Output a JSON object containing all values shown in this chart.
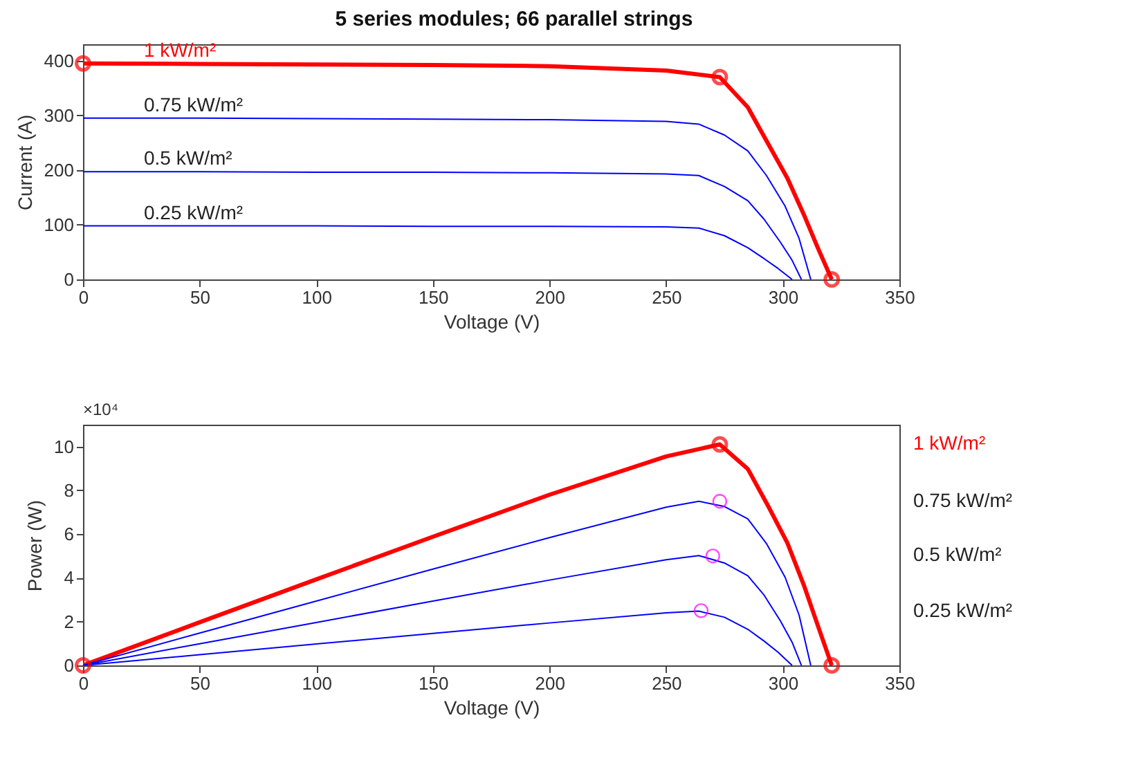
{
  "chart_data": [
    {
      "type": "line",
      "title": "5 series modules; 66 parallel strings",
      "xlabel": "Voltage (V)",
      "ylabel": "Current (A)",
      "xlim": [
        0,
        350
      ],
      "xticks": [
        0,
        50,
        100,
        150,
        200,
        250,
        300,
        350
      ],
      "ylim": [
        0,
        430
      ],
      "yticks": [
        0,
        100,
        200,
        300,
        400
      ],
      "grid": false,
      "marker": "none",
      "line_style": "solid",
      "series": [
        {
          "name": "1 kW/m²",
          "color": "#ff0000",
          "x": [
            0,
            50,
            100,
            150,
            200,
            250,
            273,
            285,
            294,
            302,
            309,
            315,
            321
          ],
          "values": [
            395,
            394,
            393,
            392,
            390,
            382,
            370,
            315,
            246,
            185,
            119,
            58,
            0
          ]
        },
        {
          "name": "0.75 kW/m²",
          "color": "#0000ff",
          "x": [
            0,
            50,
            100,
            150,
            200,
            250,
            264,
            275,
            285,
            293,
            301,
            307,
            312
          ],
          "values": [
            295,
            295,
            294,
            293,
            292,
            289,
            284,
            264,
            235,
            190,
            134,
            75,
            0
          ]
        },
        {
          "name": "0.5 kW/m²",
          "color": "#0000ff",
          "x": [
            0,
            50,
            100,
            150,
            200,
            250,
            264,
            275,
            285,
            292,
            299,
            304,
            308
          ],
          "values": [
            197,
            197,
            196,
            196,
            195,
            193,
            190,
            170,
            144,
            110,
            68,
            35,
            0
          ]
        },
        {
          "name": "0.25 kW/m²",
          "color": "#0000ff",
          "x": [
            0,
            50,
            100,
            150,
            200,
            250,
            264,
            275,
            285,
            292,
            298,
            304
          ],
          "values": [
            98,
            98,
            98,
            97,
            97,
            96,
            94,
            80,
            58,
            38,
            20,
            0
          ]
        },
        {
          "type": "scatter",
          "marker": "circle",
          "color": "#ff0000",
          "x": [
            0,
            273,
            321
          ],
          "values": [
            395,
            370,
            0
          ]
        }
      ]
    },
    {
      "type": "line",
      "xlabel": "Voltage (V)",
      "ylabel": "Power (W)",
      "annotations": [
        "×10⁴"
      ],
      "xlim": [
        0,
        350
      ],
      "xticks": [
        0,
        50,
        100,
        150,
        200,
        250,
        300,
        350
      ],
      "ylim": [
        0,
        11
      ],
      "yticks": [
        0,
        2,
        4,
        6,
        8,
        10
      ],
      "grid": false,
      "marker": "none",
      "line_style": "solid",
      "series": [
        {
          "name": "1 kW/m²",
          "color": "#ff0000",
          "x": [
            0,
            50,
            100,
            150,
            200,
            250,
            273,
            285,
            294,
            302,
            309,
            315,
            321
          ],
          "values": [
            0,
            1.97,
            3.93,
            5.88,
            7.8,
            9.55,
            10.1,
            8.98,
            7.23,
            5.59,
            3.68,
            1.83,
            0
          ]
        },
        {
          "name": "0.75 kW/m²",
          "color": "#0000ff",
          "x": [
            0,
            50,
            100,
            150,
            200,
            250,
            264,
            275,
            285,
            293,
            301,
            307,
            312
          ],
          "values": [
            0,
            1.48,
            2.94,
            4.4,
            5.84,
            7.23,
            7.5,
            7.26,
            6.7,
            5.57,
            4.03,
            2.3,
            0
          ]
        },
        {
          "name": "0.5 kW/m²",
          "color": "#0000ff",
          "x": [
            0,
            50,
            100,
            150,
            200,
            250,
            264,
            275,
            285,
            292,
            299,
            304,
            308
          ],
          "values": [
            0,
            0.99,
            1.96,
            2.94,
            3.9,
            4.83,
            5.02,
            4.68,
            4.1,
            3.21,
            2.03,
            1.06,
            0
          ]
        },
        {
          "name": "0.25 kW/m²",
          "color": "#0000ff",
          "x": [
            0,
            50,
            100,
            150,
            200,
            250,
            264,
            275,
            285,
            292,
            298,
            304
          ],
          "values": [
            0,
            0.49,
            0.98,
            1.46,
            1.94,
            2.4,
            2.48,
            2.2,
            1.65,
            1.11,
            0.6,
            0
          ]
        },
        {
          "type": "scatter",
          "marker": "circle",
          "color": "#ff0000",
          "x": [
            0,
            273,
            321
          ],
          "values": [
            0,
            10.1,
            0
          ]
        },
        {
          "type": "scatter",
          "marker": "circle",
          "color": "#ff00ff",
          "x": [
            265,
            270,
            273
          ],
          "values": [
            2.5,
            5.0,
            7.5
          ]
        }
      ]
    }
  ]
}
